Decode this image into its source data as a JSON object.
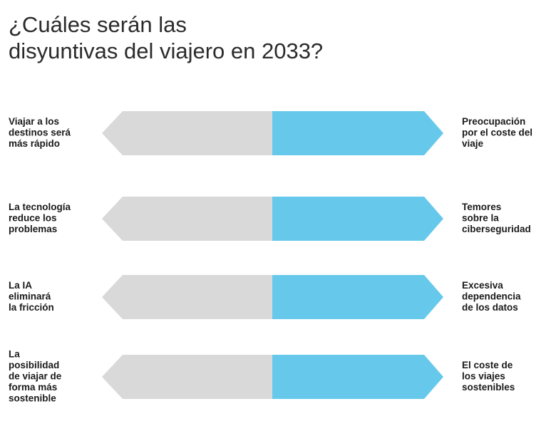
{
  "title": [
    "¿Cuáles serán las",
    "disyuntivas del viajero en 2033?"
  ],
  "rows": [
    {
      "left": [
        "Viajar a los",
        "destinos será",
        "más rápido"
      ],
      "right": [
        "Preocupación",
        "por el coste del",
        "viaje"
      ]
    },
    {
      "left": [
        "La tecnología",
        "reduce los",
        "problemas"
      ],
      "right": [
        "Temores",
        "sobre la",
        "ciberseguridad"
      ]
    },
    {
      "left": [
        "La IA",
        "eliminará",
        "la fricción"
      ],
      "right": [
        "Excesiva",
        "dependencia",
        "de los datos"
      ]
    },
    {
      "left": [
        "La",
        "posibilidad",
        "de viajar de",
        "forma más",
        "sostenible"
      ],
      "right": [
        "El coste de",
        "los viajes",
        "sostenibles"
      ]
    }
  ]
}
